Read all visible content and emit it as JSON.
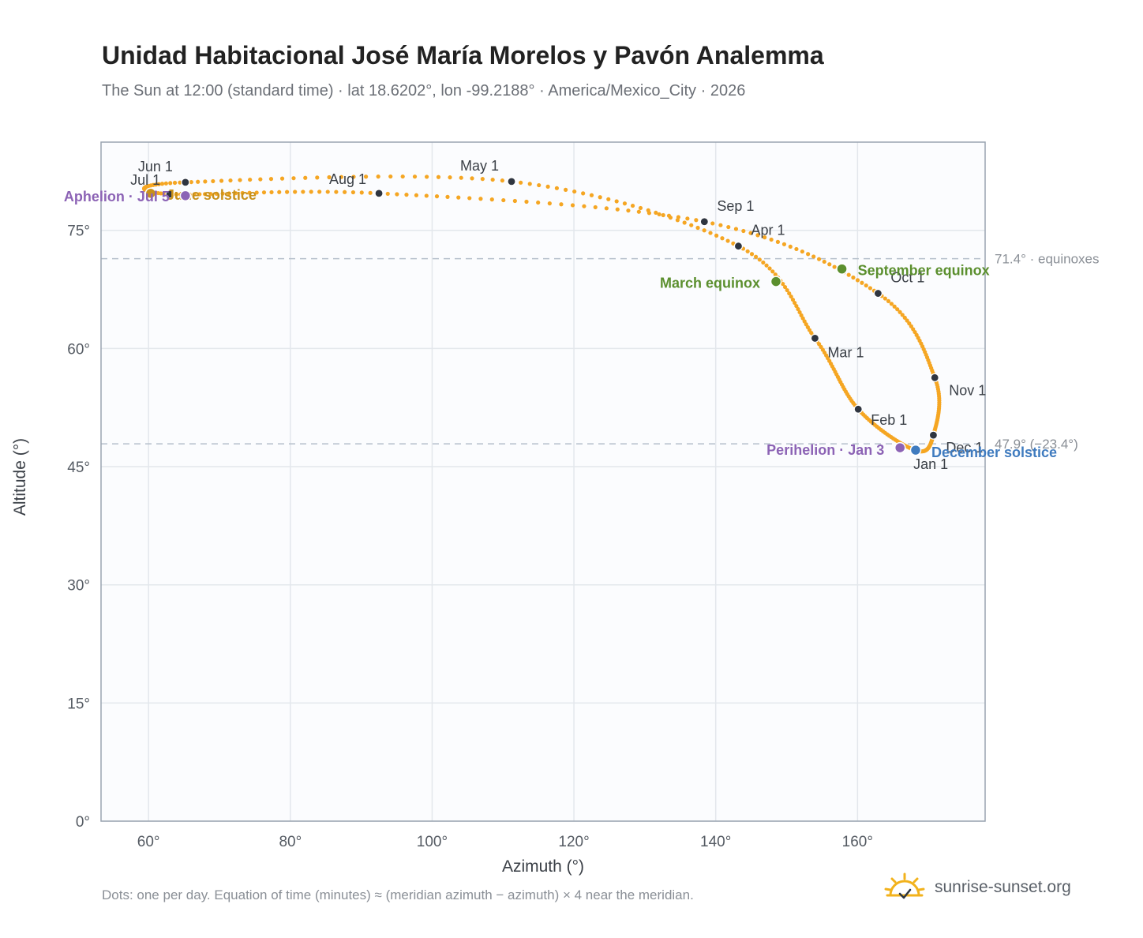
{
  "page": {
    "title": "Unidad Habitacional José María Morelos y Pavón Analemma",
    "subtitle": "The Sun at 12:00 (standard time) · lat 18.6202°, lon -99.2188° · America/Mexico_City · 2026",
    "footnote": "Dots: one per day. Equation of time (minutes) ≈ (meridian azimuth − azimuth) × 4 near the meridian.",
    "brand": "sunrise-sunset.org",
    "brand_icon": "sun-logo-icon"
  },
  "chart_data": {
    "type": "scatter",
    "xlabel": "Azimuth (°)",
    "ylabel": "Altitude (°)",
    "xlim": [
      53.3,
      178
    ],
    "ylim": [
      0,
      86.2
    ],
    "xticks": [
      60,
      80,
      100,
      120,
      140,
      160
    ],
    "xtick_labels": [
      "60°",
      "80°",
      "100°",
      "120°",
      "140°",
      "160°"
    ],
    "yticks": [
      0,
      15,
      30,
      45,
      60,
      75
    ],
    "ytick_labels": [
      "0°",
      "15°",
      "30°",
      "45°",
      "60°",
      "75°"
    ],
    "grid": true,
    "reference_lines": [
      {
        "y": 71.4,
        "label": "71.4° · equinoxes"
      },
      {
        "y": 47.9,
        "label": "47.9° (−23.4°)"
      }
    ],
    "curve_color": "#f5a623",
    "month_markers": [
      {
        "label": "Jan 1",
        "az": 168.1,
        "alt": 47.1
      },
      {
        "label": "Feb 1",
        "az": 160.1,
        "alt": 52.3
      },
      {
        "label": "Mar 1",
        "az": 154.0,
        "alt": 61.3
      },
      {
        "label": "Apr 1",
        "az": 143.2,
        "alt": 73.0
      },
      {
        "label": "May 1",
        "az": 111.2,
        "alt": 81.2
      },
      {
        "label": "Jun 1",
        "az": 65.2,
        "alt": 81.1
      },
      {
        "label": "Jul 1",
        "az": 63.0,
        "alt": 79.6
      },
      {
        "label": "Aug 1",
        "az": 92.5,
        "alt": 79.7
      },
      {
        "label": "Sep 1",
        "az": 138.4,
        "alt": 76.1
      },
      {
        "label": "Oct 1",
        "az": 162.9,
        "alt": 67.0
      },
      {
        "label": "Nov 1",
        "az": 170.9,
        "alt": 56.3
      },
      {
        "label": "Dec 1",
        "az": 170.7,
        "alt": 49.0
      }
    ],
    "events": [
      {
        "label": "March equinox",
        "az": 148.5,
        "alt": 68.5,
        "color": "#5b8f2e"
      },
      {
        "label": "September equinox",
        "az": 157.8,
        "alt": 70.1,
        "color": "#5b8f2e"
      },
      {
        "label": "June solstice",
        "az": 60.3,
        "alt": 79.7,
        "color": "#c8911b"
      },
      {
        "label": "December solstice",
        "az": 168.2,
        "alt": 47.1,
        "color": "#3f7bbf"
      },
      {
        "label": "Perihelion · Jan 3",
        "az": 166.0,
        "alt": 47.4,
        "color": "#8c63b5"
      },
      {
        "label": "Aphelion · Jul 5",
        "az": 65.2,
        "alt": 79.4,
        "color": "#8c63b5"
      }
    ]
  }
}
